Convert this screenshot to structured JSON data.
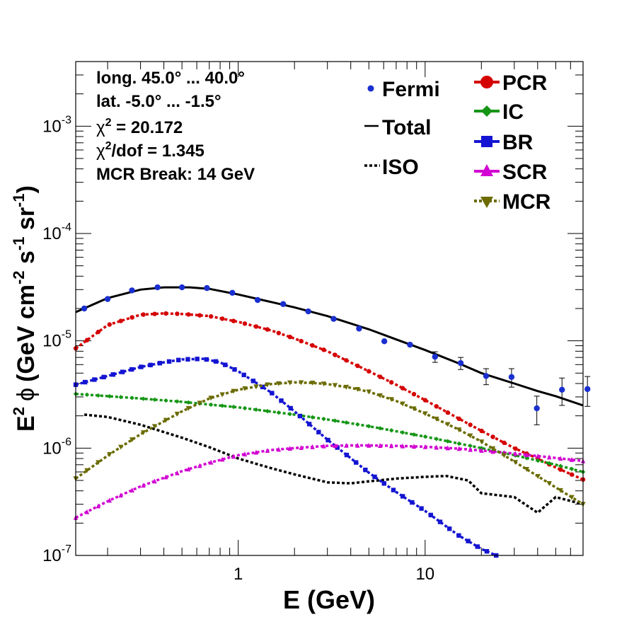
{
  "chart_data": {
    "type": "line",
    "xlabel": "E (GeV)",
    "ylabel": "E² ϕ (GeV cm⁻² s⁻¹ sr⁻¹)",
    "ylabel_parts": {
      "pre": "E",
      "pre_sup": "2",
      "phi": "ϕ",
      "open": "(GeV cm",
      "sup1": "-2",
      "mid1": " s",
      "sup2": "-1",
      "mid2": " sr",
      "sup3": "-1",
      "close": ")"
    },
    "xscale": "log",
    "yscale": "log",
    "xlim": [
      0.135,
      70
    ],
    "ylim": [
      1e-07,
      0.004
    ],
    "x_tick_labels": [
      {
        "v": 1,
        "label": "1"
      },
      {
        "v": 10,
        "label": "10"
      }
    ],
    "y_tick_labels": [
      {
        "v": 1e-07,
        "base": "10",
        "exp": "-7"
      },
      {
        "v": 1e-06,
        "base": "10",
        "exp": "-6"
      },
      {
        "v": 1e-05,
        "base": "10",
        "exp": "-5"
      },
      {
        "v": 0.0001,
        "base": "10",
        "exp": "-4"
      },
      {
        "v": 0.001,
        "base": "10",
        "exp": "-3"
      }
    ],
    "info": {
      "long": "long. 45.0° ... 40.0°",
      "lat": "lat. -5.0° ... -1.5°",
      "chi2_sym": "χ",
      "chi2_sup": "2",
      "chi2_val": " = 20.172",
      "chidof_sym": "χ",
      "chidof_sup": "2",
      "chidof_val": "/dof = 1.345",
      "mcr_break": "MCR Break: 14 GeV"
    },
    "legend_placement": "top-right",
    "fermi": {
      "name": "Fermi",
      "color": "#1a2fd0",
      "points": [
        {
          "x": 0.15,
          "y": 2e-05
        },
        {
          "x": 0.2,
          "y": 2.45e-05
        },
        {
          "x": 0.27,
          "y": 2.95e-05
        },
        {
          "x": 0.37,
          "y": 3.15e-05
        },
        {
          "x": 0.5,
          "y": 3.15e-05
        },
        {
          "x": 0.68,
          "y": 3.1e-05
        },
        {
          "x": 0.93,
          "y": 2.8e-05
        },
        {
          "x": 1.27,
          "y": 2.4e-05
        },
        {
          "x": 1.74,
          "y": 2.2e-05
        },
        {
          "x": 2.37,
          "y": 1.88e-05
        },
        {
          "x": 3.24,
          "y": 1.6e-05
        },
        {
          "x": 4.43,
          "y": 1.3e-05
        },
        {
          "x": 6.05,
          "y": 9.9e-06
        },
        {
          "x": 8.3,
          "y": 9.2e-06
        },
        {
          "x": 11.3,
          "y": 7.1e-06,
          "e": 8e-07
        },
        {
          "x": 15.5,
          "y": 6.2e-06,
          "e": 8e-07
        },
        {
          "x": 21.2,
          "y": 4.7e-06,
          "e": 8e-07
        },
        {
          "x": 29,
          "y": 4.6e-06,
          "e": 9e-07
        },
        {
          "x": 39.6,
          "y": 2.35e-06,
          "e": 7e-07
        },
        {
          "x": 54,
          "y": 3.5e-06,
          "e": 1e-06
        },
        {
          "x": 73.9,
          "y": 3.55e-06,
          "e": 1.1e-06
        }
      ]
    },
    "series": [
      {
        "name": "Total",
        "style": "line",
        "color": "#000000",
        "dash": "",
        "x": [
          0.135,
          0.2,
          0.3,
          0.4,
          0.55,
          0.7,
          1,
          1.5,
          2,
          3,
          5,
          7,
          10,
          15,
          20,
          30,
          40,
          50,
          70
        ],
        "y": [
          1.85e-05,
          2.5e-05,
          3e-05,
          3.15e-05,
          3.15e-05,
          3.05e-05,
          2.7e-05,
          2.3e-05,
          2.05e-05,
          1.7e-05,
          1.28e-05,
          1.03e-05,
          8.2e-06,
          6.2e-06,
          5e-06,
          4e-06,
          3.4e-06,
          3.05e-06,
          2.5e-06
        ]
      },
      {
        "name": "ISO",
        "style": "line",
        "color": "#000000",
        "dash": "4 3",
        "x": [
          0.15,
          0.2,
          0.3,
          0.5,
          0.7,
          1,
          1.5,
          2,
          3,
          4,
          5,
          7,
          10,
          13,
          17,
          20,
          30,
          40,
          50,
          70
        ],
        "y": [
          2.05e-06,
          1.95e-06,
          1.65e-06,
          1.25e-06,
          1.02e-06,
          8e-07,
          6.5e-07,
          5.7e-07,
          4.8e-07,
          4.7e-07,
          4.9e-07,
          5.2e-07,
          5.4e-07,
          5.5e-07,
          5e-07,
          3.8e-07,
          3.5e-07,
          2.5e-07,
          3.5e-07,
          3e-07
        ]
      },
      {
        "name": "PCR",
        "style": "circle",
        "color": "#d50000",
        "dash": "",
        "x": [
          0.135,
          0.2,
          0.3,
          0.4,
          0.5,
          0.7,
          1,
          1.5,
          2,
          3,
          5,
          7,
          10,
          15,
          20,
          30,
          40,
          50,
          70
        ],
        "y": [
          8.5e-06,
          1.4e-05,
          1.75e-05,
          1.8e-05,
          1.78e-05,
          1.7e-05,
          1.5e-05,
          1.25e-05,
          1.05e-05,
          8e-06,
          5.2e-06,
          3.9e-06,
          2.8e-06,
          1.9e-06,
          1.45e-06,
          1e-06,
          8e-07,
          6.6e-07,
          5.1e-07
        ]
      },
      {
        "name": "IC",
        "style": "diamond",
        "color": "#149614",
        "dash": "",
        "x": [
          0.135,
          0.2,
          0.3,
          0.5,
          1,
          2,
          3,
          5,
          10,
          20,
          30,
          50,
          70
        ],
        "y": [
          3.2e-06,
          3.05e-06,
          2.9e-06,
          2.7e-06,
          2.4e-06,
          2.05e-06,
          1.85e-06,
          1.6e-06,
          1.28e-06,
          1e-06,
          8.6e-07,
          7e-07,
          6e-07
        ]
      },
      {
        "name": "BR",
        "style": "square",
        "color": "#1414d2",
        "dash": "",
        "x": [
          0.135,
          0.2,
          0.3,
          0.4,
          0.5,
          0.65,
          0.8,
          1,
          1.5,
          2,
          3,
          5,
          7,
          10,
          15,
          20,
          24
        ],
        "y": [
          3.9e-06,
          4.7e-06,
          5.7e-06,
          6.3e-06,
          6.7e-06,
          6.8e-06,
          6.3e-06,
          5.2e-06,
          3.3e-06,
          2.2e-06,
          1.2e-06,
          5.9e-07,
          3.9e-07,
          2.6e-07,
          1.55e-07,
          1.15e-07,
          1e-07
        ]
      },
      {
        "name": "SCR",
        "style": "triangle-up",
        "color": "#d200d2",
        "dash": "",
        "x": [
          0.135,
          0.2,
          0.3,
          0.5,
          0.7,
          1,
          1.5,
          2,
          3,
          4,
          5,
          7,
          10,
          15,
          20,
          30,
          50,
          70
        ],
        "y": [
          2.25e-07,
          3.2e-07,
          4.4e-07,
          6.1e-07,
          7.3e-07,
          8.6e-07,
          9.6e-07,
          1e-06,
          1.05e-06,
          1.06e-06,
          1.06e-06,
          1.05e-06,
          1.03e-06,
          9.9e-07,
          9.5e-07,
          8.9e-07,
          8.1e-07,
          7.6e-07
        ]
      },
      {
        "name": "MCR",
        "style": "triangle-down",
        "color": "#6b6b00",
        "dash": "",
        "x": [
          0.135,
          0.2,
          0.3,
          0.5,
          0.7,
          1,
          1.5,
          2,
          2.5,
          3,
          4,
          5,
          7,
          10,
          15,
          20,
          30,
          50,
          70
        ],
        "y": [
          5.2e-07,
          8.5e-07,
          1.35e-06,
          2.2e-06,
          2.9e-06,
          3.5e-06,
          3.95e-06,
          4.1e-06,
          4.05e-06,
          3.95e-06,
          3.65e-06,
          3.35e-06,
          2.75e-06,
          2.1e-06,
          1.5e-06,
          1.15e-06,
          7.5e-07,
          4.3e-07,
          3e-07
        ]
      }
    ]
  }
}
